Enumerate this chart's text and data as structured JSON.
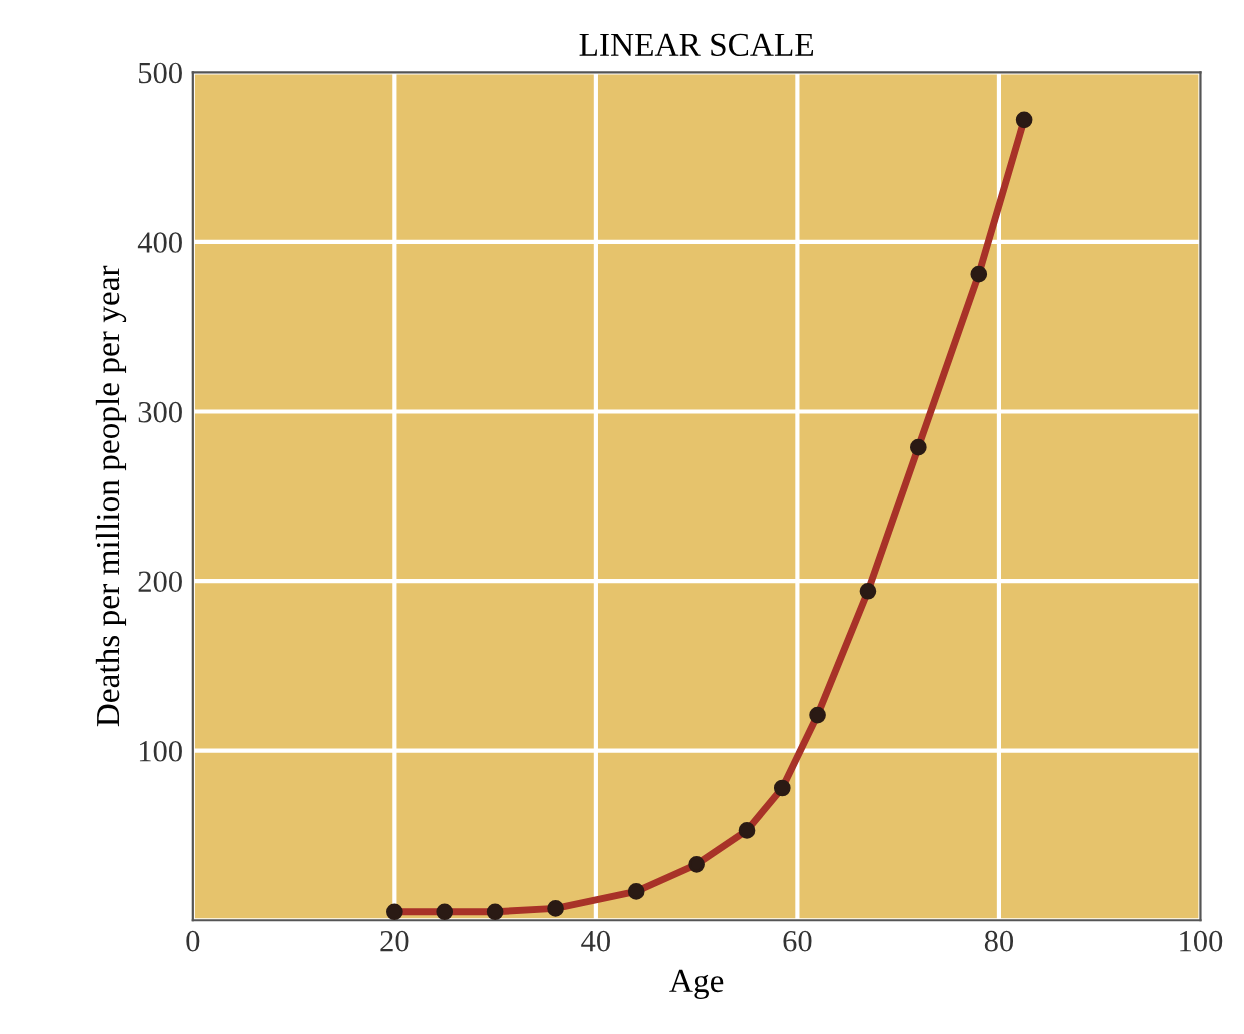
{
  "chart_data": {
    "type": "line",
    "title": "LINEAR SCALE",
    "xlabel": "Age",
    "ylabel": "Deaths per million people per year",
    "x": [
      20,
      25,
      30,
      36,
      44,
      50,
      55,
      58.5,
      62,
      67,
      72,
      78,
      82.5
    ],
    "series": [
      {
        "color": "#a83228",
        "values": [
          5,
          5,
          5,
          7,
          17,
          33,
          53,
          78,
          121,
          194,
          279,
          381,
          472
        ]
      }
    ],
    "xlim": [
      0,
      100
    ],
    "ylim": [
      0,
      500
    ],
    "xticks": [
      0,
      20,
      40,
      60,
      80,
      100
    ],
    "yticks": [
      {
        "value": 0,
        "label": null
      },
      100,
      200,
      300,
      400,
      500
    ],
    "grid": true,
    "marker": "circle",
    "line_style": "solid"
  }
}
